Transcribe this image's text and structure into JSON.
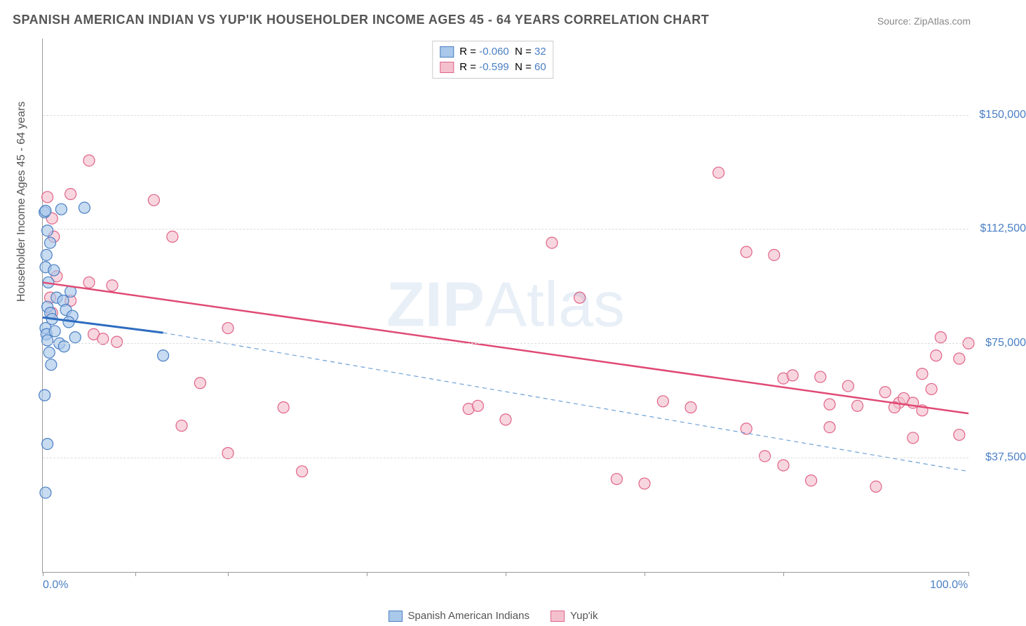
{
  "title": "SPANISH AMERICAN INDIAN VS YUP'IK HOUSEHOLDER INCOME AGES 45 - 64 YEARS CORRELATION CHART",
  "source": "Source: ZipAtlas.com",
  "watermark_bold": "ZIP",
  "watermark_light": "Atlas",
  "y_axis_label": "Householder Income Ages 45 - 64 years",
  "chart": {
    "type": "scatter",
    "background_color": "#ffffff",
    "grid_color": "#dddddd",
    "axis_color": "#999999",
    "xlim": [
      0,
      100
    ],
    "ylim": [
      0,
      175000
    ],
    "x_ticks": [
      0,
      10,
      20,
      35,
      50,
      65,
      80,
      100
    ],
    "x_tick_labels": {
      "0": "0.0%",
      "100": "100.0%"
    },
    "y_ticks": [
      37500,
      75000,
      112500,
      150000
    ],
    "y_tick_labels": {
      "37500": "$37,500",
      "75000": "$75,000",
      "112500": "$112,500",
      "150000": "$150,000"
    },
    "legend_box": [
      {
        "swatch_fill": "#a9c8ea",
        "swatch_border": "#4a7fc4",
        "r_label": "R =",
        "r_val": "-0.060",
        "n_label": "N =",
        "n_val": "32"
      },
      {
        "swatch_fill": "#f5c0ce",
        "swatch_border": "#e06387",
        "r_label": "R =",
        "r_val": "-0.599",
        "n_label": "N =",
        "n_val": "60"
      }
    ],
    "bottom_legend": [
      {
        "swatch_fill": "#a9c8ea",
        "swatch_border": "#4a7fc4",
        "label": "Spanish American Indians"
      },
      {
        "swatch_fill": "#f5c0ce",
        "swatch_border": "#e06387",
        "label": "Yup'ik"
      }
    ],
    "marker_radius": 8,
    "marker_stroke_width": 1.2,
    "marker_opacity": 0.65,
    "series": {
      "spanish": {
        "fill": "#a9c8ea",
        "stroke": "#4a7fc4",
        "points": [
          [
            0.2,
            118000
          ],
          [
            0.3,
            118500
          ],
          [
            0.5,
            112000
          ],
          [
            0.8,
            108000
          ],
          [
            0.4,
            104000
          ],
          [
            0.3,
            100000
          ],
          [
            1.2,
            99000
          ],
          [
            0.6,
            95000
          ],
          [
            2.0,
            119000
          ],
          [
            4.5,
            119500
          ],
          [
            1.5,
            90000
          ],
          [
            2.2,
            89000
          ],
          [
            3.0,
            92000
          ],
          [
            0.5,
            87000
          ],
          [
            0.8,
            85000
          ],
          [
            1.0,
            83000
          ],
          [
            2.5,
            86000
          ],
          [
            3.2,
            84000
          ],
          [
            0.3,
            80000
          ],
          [
            0.4,
            78000
          ],
          [
            1.3,
            79000
          ],
          [
            2.8,
            82000
          ],
          [
            0.5,
            76000
          ],
          [
            1.8,
            75000
          ],
          [
            3.5,
            77000
          ],
          [
            0.7,
            72000
          ],
          [
            2.3,
            74000
          ],
          [
            0.2,
            58000
          ],
          [
            0.5,
            42000
          ],
          [
            0.3,
            26000
          ],
          [
            13.0,
            71000
          ],
          [
            0.9,
            68000
          ]
        ],
        "trend_solid": {
          "x1": 0,
          "y1": 83500,
          "x2": 13,
          "y2": 78500,
          "color": "#2d6cc0",
          "width": 3
        },
        "trend_dashed": {
          "x1": 13,
          "y1": 78500,
          "x2": 100,
          "y2": 33000,
          "color": "#6ea0d8",
          "width": 1.2,
          "dash": "6,5"
        }
      },
      "yupik": {
        "fill": "#f5c0ce",
        "stroke": "#e06387",
        "points": [
          [
            5.0,
            135000
          ],
          [
            0.5,
            123000
          ],
          [
            3.0,
            124000
          ],
          [
            12.0,
            122000
          ],
          [
            1.0,
            116000
          ],
          [
            1.2,
            110000
          ],
          [
            14.0,
            110000
          ],
          [
            1.5,
            97000
          ],
          [
            5.0,
            95000
          ],
          [
            7.5,
            94000
          ],
          [
            0.8,
            90000
          ],
          [
            3.0,
            89000
          ],
          [
            1.0,
            85000
          ],
          [
            5.5,
            78000
          ],
          [
            6.5,
            76500
          ],
          [
            8.0,
            75500
          ],
          [
            20.0,
            80000
          ],
          [
            17.0,
            62000
          ],
          [
            15.0,
            48000
          ],
          [
            20.0,
            39000
          ],
          [
            26.0,
            54000
          ],
          [
            28.0,
            33000
          ],
          [
            46.0,
            53500
          ],
          [
            47.0,
            54500
          ],
          [
            50.0,
            50000
          ],
          [
            58.0,
            90000
          ],
          [
            55.0,
            108000
          ],
          [
            62.0,
            30500
          ],
          [
            65.0,
            29000
          ],
          [
            67.0,
            56000
          ],
          [
            70.0,
            54000
          ],
          [
            73.0,
            131000
          ],
          [
            76.0,
            105000
          ],
          [
            76.0,
            47000
          ],
          [
            78.0,
            38000
          ],
          [
            79.0,
            104000
          ],
          [
            80.0,
            35000
          ],
          [
            80.0,
            63500
          ],
          [
            81.0,
            64500
          ],
          [
            83.0,
            30000
          ],
          [
            84.0,
            64000
          ],
          [
            85.0,
            55000
          ],
          [
            85.0,
            47500
          ],
          [
            87.0,
            61000
          ],
          [
            88.0,
            54500
          ],
          [
            90.0,
            28000
          ],
          [
            91.0,
            59000
          ],
          [
            92.5,
            55500
          ],
          [
            93.0,
            57000
          ],
          [
            92.0,
            54000
          ],
          [
            94.0,
            44000
          ],
          [
            95.0,
            65000
          ],
          [
            95.0,
            53000
          ],
          [
            96.0,
            60000
          ],
          [
            97.0,
            77000
          ],
          [
            96.5,
            71000
          ],
          [
            99.0,
            45000
          ],
          [
            99.0,
            70000
          ],
          [
            100.0,
            75000
          ],
          [
            94.0,
            55500
          ]
        ],
        "trend_solid": {
          "x1": 0,
          "y1": 95000,
          "x2": 100,
          "y2": 52000,
          "color": "#e04a74",
          "width": 2.5
        }
      }
    }
  }
}
